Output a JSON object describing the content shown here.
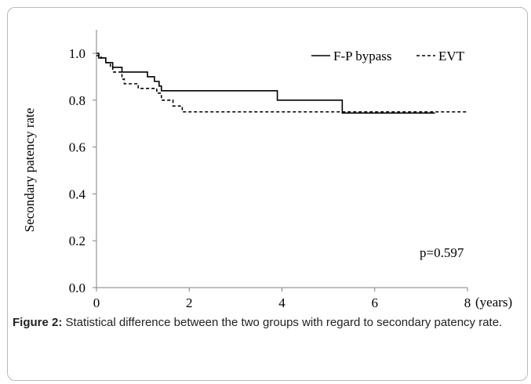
{
  "chart_data": {
    "type": "line",
    "title": "",
    "xlabel": "(years)",
    "ylabel": "Secondary patency rate",
    "xlim": [
      0,
      8
    ],
    "ylim": [
      0.0,
      1.0
    ],
    "x_ticks": [
      "0",
      "2",
      "4",
      "6",
      "8"
    ],
    "y_ticks": [
      "0.0",
      "0.2",
      "0.4",
      "0.6",
      "0.8",
      "1.0"
    ],
    "grid": false,
    "legend_position": "top-right",
    "annotation": "p=0.597",
    "series": [
      {
        "name": "F-P bypass",
        "style": "solid",
        "step_points": [
          [
            0,
            1.0
          ],
          [
            0.05,
            0.98
          ],
          [
            0.2,
            0.96
          ],
          [
            0.35,
            0.94
          ],
          [
            0.55,
            0.92
          ],
          [
            1.1,
            0.9
          ],
          [
            1.25,
            0.88
          ],
          [
            1.35,
            0.86
          ],
          [
            1.4,
            0.84
          ],
          [
            3.9,
            0.8
          ],
          [
            5.3,
            0.745
          ],
          [
            7.3,
            0.745
          ]
        ]
      },
      {
        "name": "EVT",
        "style": "dashed",
        "step_points": [
          [
            0,
            0.99
          ],
          [
            0.1,
            0.98
          ],
          [
            0.2,
            0.96
          ],
          [
            0.3,
            0.94
          ],
          [
            0.35,
            0.92
          ],
          [
            0.55,
            0.89
          ],
          [
            0.6,
            0.87
          ],
          [
            0.9,
            0.85
          ],
          [
            1.3,
            0.83
          ],
          [
            1.4,
            0.8
          ],
          [
            1.65,
            0.775
          ],
          [
            1.85,
            0.75
          ],
          [
            8.0,
            0.75
          ]
        ]
      }
    ]
  },
  "caption": {
    "label": "Figure 2:",
    "text": " Statistical difference between the two groups with regard to secondary patency rate."
  },
  "colors": {
    "line": "#000000",
    "axis": "#808080",
    "border": "#b9b9b9"
  }
}
